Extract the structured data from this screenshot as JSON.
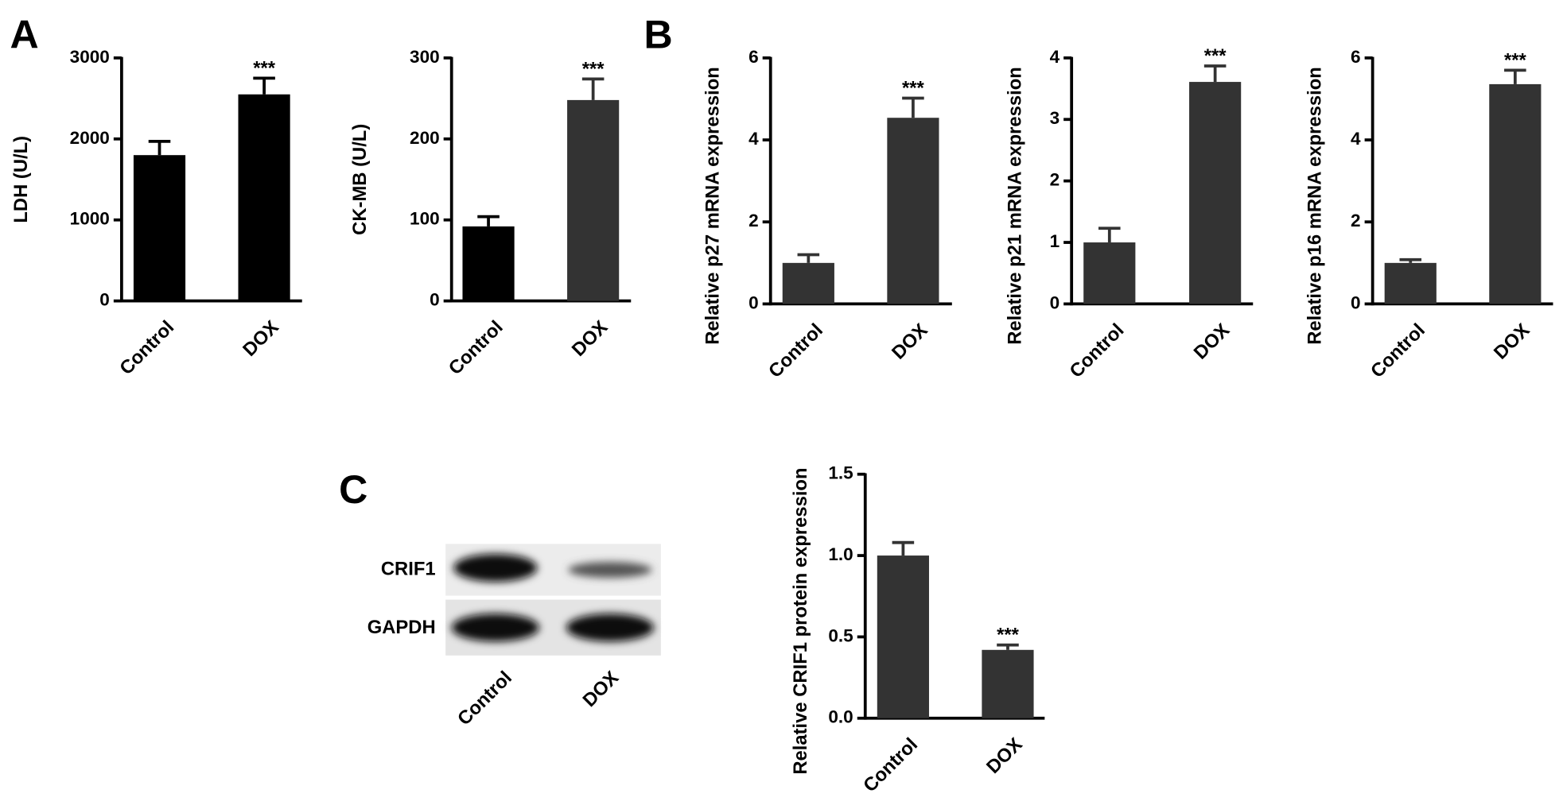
{
  "chart_data": [
    {
      "type": "bar",
      "y_label": "LDH (U/L)",
      "categories": [
        "Control",
        "DOX"
      ],
      "values": [
        1800,
        2550
      ],
      "errors": [
        170,
        200
      ],
      "colors": [
        "#000000",
        "#000000"
      ],
      "ylim": [
        0,
        3000
      ],
      "yticks": [
        0,
        1000,
        2000,
        3000
      ],
      "annotations": [
        {
          "text": "***",
          "category": "DOX"
        }
      ]
    },
    {
      "type": "bar",
      "y_label": "CK-MB (U/L)",
      "categories": [
        "Control",
        "DOX"
      ],
      "values": [
        92,
        248
      ],
      "errors": [
        12,
        26
      ],
      "colors": [
        "#000000",
        "#333333"
      ],
      "ylim": [
        0,
        300
      ],
      "yticks": [
        0,
        100,
        200,
        300
      ],
      "annotations": [
        {
          "text": "***",
          "category": "DOX"
        }
      ]
    },
    {
      "type": "bar",
      "y_label": "Relative p27 mRNA expression",
      "categories": [
        "Control",
        "DOX"
      ],
      "values": [
        1.0,
        4.54
      ],
      "errors": [
        0.2,
        0.48
      ],
      "colors": [
        "#333333",
        "#333333"
      ],
      "ylim": [
        0,
        6
      ],
      "yticks": [
        0,
        2,
        4,
        6
      ],
      "annotations": [
        {
          "text": "***",
          "category": "DOX"
        }
      ]
    },
    {
      "type": "bar",
      "y_label": "Relative p21 mRNA expression",
      "categories": [
        "Control",
        "DOX"
      ],
      "values": [
        1.0,
        3.61
      ],
      "errors": [
        0.23,
        0.26
      ],
      "colors": [
        "#333333",
        "#333333"
      ],
      "ylim": [
        0,
        4
      ],
      "yticks": [
        0,
        1,
        2,
        3,
        4
      ],
      "annotations": [
        {
          "text": "***",
          "category": "DOX"
        }
      ]
    },
    {
      "type": "bar",
      "y_label": "Relative p16 mRNA expression",
      "categories": [
        "Control",
        "DOX"
      ],
      "values": [
        1.0,
        5.36
      ],
      "errors": [
        0.08,
        0.34
      ],
      "colors": [
        "#333333",
        "#333333"
      ],
      "ylim": [
        0,
        6
      ],
      "yticks": [
        0,
        2,
        4,
        6
      ],
      "annotations": [
        {
          "text": "***",
          "category": "DOX"
        }
      ]
    },
    {
      "type": "bar",
      "y_label": "Relative CRIF1 protein expression",
      "categories": [
        "Control",
        "DOX"
      ],
      "values": [
        1.0,
        0.42
      ],
      "errors": [
        0.08,
        0.03
      ],
      "colors": [
        "#333333",
        "#333333"
      ],
      "ylim": [
        0,
        1.5
      ],
      "yticks": [
        {
          "value": 0,
          "label": "0.0"
        },
        {
          "value": 0.5,
          "label": "0.5"
        },
        {
          "value": 1,
          "label": "1.0"
        },
        {
          "value": 1.5,
          "label": "1.5"
        }
      ],
      "annotations": [
        {
          "text": "***",
          "category": "DOX"
        }
      ]
    }
  ],
  "panel_labels": [
    "A",
    "B",
    "C"
  ],
  "blot": {
    "rows": [
      "CRIF1",
      "GAPDH"
    ],
    "lanes": [
      "Control",
      "DOX"
    ]
  }
}
